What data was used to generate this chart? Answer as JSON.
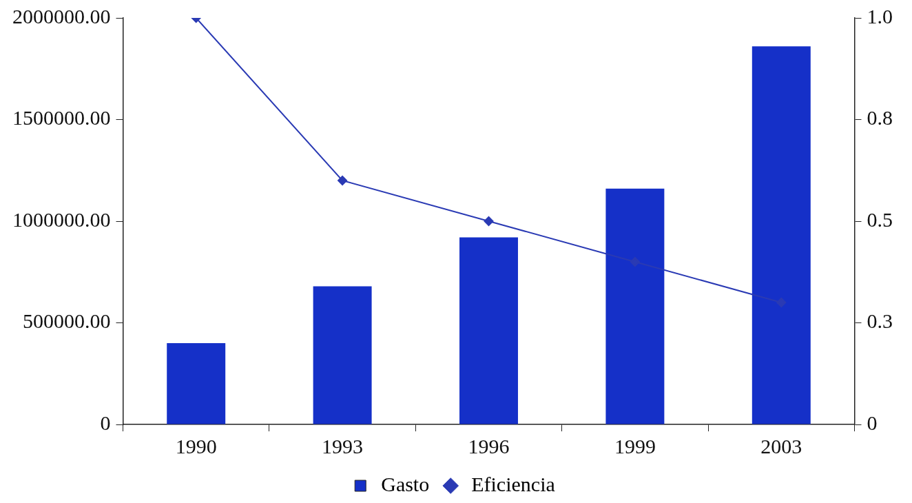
{
  "chart_data": {
    "type": "bar",
    "categories": [
      "1990",
      "1993",
      "1996",
      "1999",
      "2003"
    ],
    "series": [
      {
        "name": "Gasto",
        "color": "#1530c8",
        "values": [
          400000,
          680000,
          920000,
          1160000,
          1860000
        ]
      },
      {
        "name": "Eficiencia",
        "type": "line",
        "axis": "y2",
        "color": "#2a3ab4",
        "marker": "diamond",
        "values": [
          1.0,
          0.6,
          0.5,
          0.4,
          0.3
        ]
      }
    ],
    "ylim": [
      0,
      2000000
    ],
    "yticks": [
      0,
      {
        "value": 500000,
        "label": "500000.00"
      },
      {
        "value": 1000000,
        "label": "1000000.00"
      },
      {
        "value": 1500000,
        "label": "1500000.00"
      },
      {
        "value": 2000000,
        "label": "2000000.00"
      }
    ],
    "y2lim": [
      0,
      1
    ],
    "y2ticks": [
      0,
      {
        "value": 0.25,
        "label": "0.3"
      },
      {
        "value": 0.5,
        "label": "0.5"
      },
      {
        "value": 0.75,
        "label": "0.8"
      },
      {
        "value": 1,
        "label": "1.0"
      }
    ],
    "grid": false,
    "legend": "bottom"
  }
}
